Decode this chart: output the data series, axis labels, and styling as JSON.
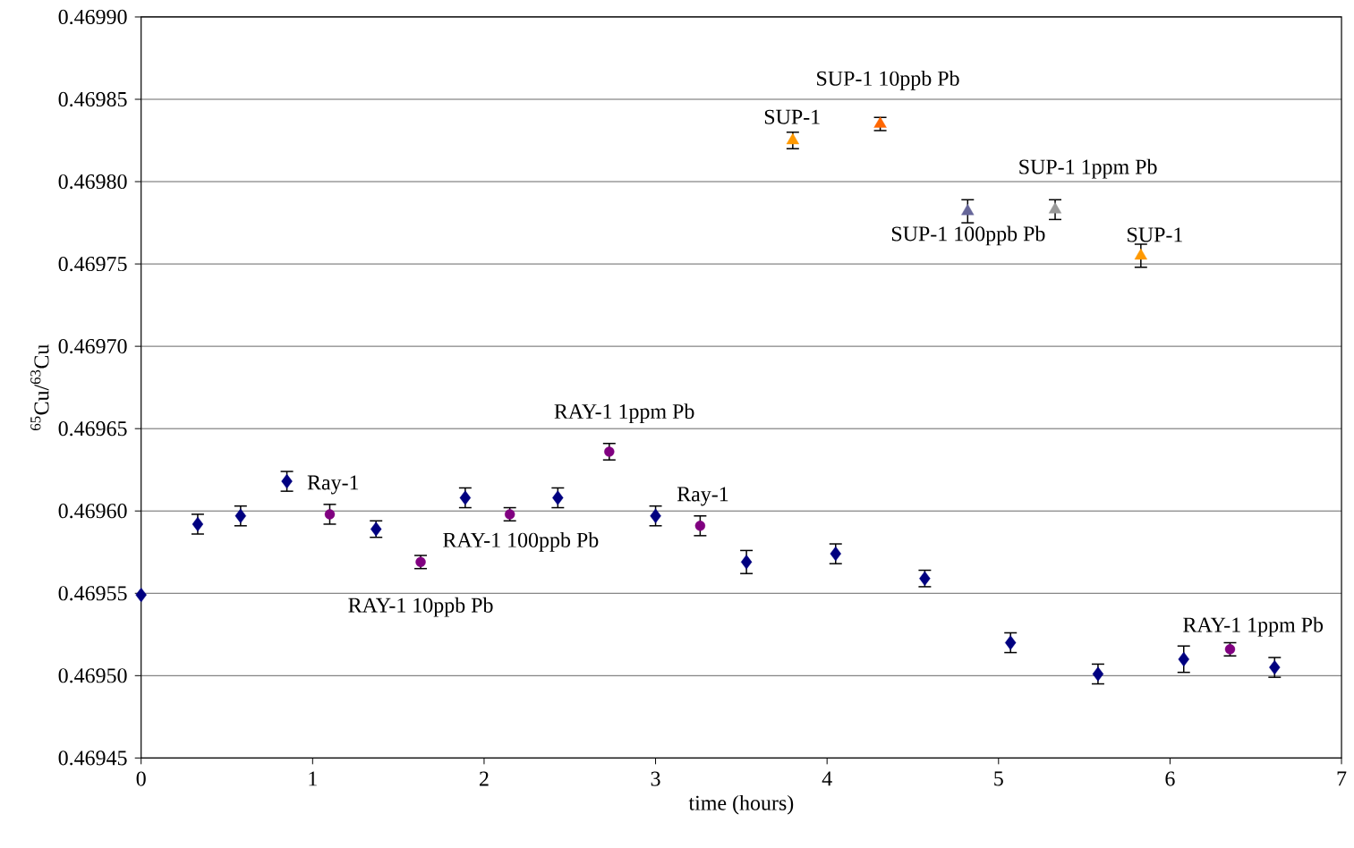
{
  "chart_data": {
    "type": "scatter",
    "xlabel": "time (hours)",
    "ylabel": "$^{65}$Cu/$^{63}$Cu",
    "xlim": [
      0,
      7
    ],
    "xticks": [
      0,
      1,
      2,
      3,
      4,
      5,
      6,
      7
    ],
    "ylim": [
      0.46945,
      0.4699
    ],
    "yticks": [
      {
        "value": 0.46945,
        "label": "0.46945"
      },
      {
        "value": 0.4695,
        "label": "0.46950"
      },
      {
        "value": 0.46955,
        "label": "0.46955"
      },
      {
        "value": 0.4696,
        "label": "0.46960"
      },
      {
        "value": 0.46965,
        "label": "0.46965"
      },
      {
        "value": 0.4697,
        "label": "0.46970"
      },
      {
        "value": 0.46975,
        "label": "0.46975"
      },
      {
        "value": 0.4698,
        "label": "0.46980"
      },
      {
        "value": 0.46985,
        "label": "0.46985"
      },
      {
        "value": 0.4699,
        "label": "0.46990"
      }
    ],
    "grid": "y",
    "series": [
      {
        "color": "#000080",
        "marker": "diamond",
        "x": [
          0,
          0.33,
          0.58,
          0.85,
          1.37,
          1.89,
          2.43,
          3.0,
          3.53,
          4.05,
          4.57,
          5.07,
          5.58,
          6.08,
          6.61
        ],
        "values": [
          0.469549,
          0.469592,
          0.469597,
          0.469618,
          0.469589,
          0.469608,
          0.469608,
          0.469597,
          0.469569,
          0.469574,
          0.469559,
          0.46952,
          0.469501,
          0.46951,
          0.469505
        ],
        "errors": [
          null,
          6e-06,
          6e-06,
          6e-06,
          5e-06,
          6e-06,
          6e-06,
          6e-06,
          7e-06,
          6e-06,
          5e-06,
          6e-06,
          6e-06,
          8e-06,
          6e-06
        ]
      },
      {
        "color": "#800080",
        "marker": "circle",
        "x": [
          1.1,
          3.26
        ],
        "values": [
          0.469598,
          0.469591
        ],
        "errors": [
          6e-06,
          6e-06
        ]
      },
      {
        "color": "#800080",
        "marker": "circle",
        "x": [
          1.63,
          2.15,
          2.73,
          6.35
        ],
        "values": [
          0.469569,
          0.469598,
          0.469636,
          0.469516
        ],
        "errors": [
          4e-06,
          4e-06,
          5e-06,
          4e-06
        ]
      },
      {
        "color": "#ff9900",
        "marker": "triangle",
        "x": [
          3.8,
          5.83
        ],
        "values": [
          0.469825,
          0.469755
        ],
        "errors": [
          5e-06,
          7e-06
        ]
      },
      {
        "color": "#ff6600",
        "marker": "triangle",
        "x": [
          4.31
        ],
        "values": [
          0.469835
        ],
        "errors": [
          4e-06
        ]
      },
      {
        "color": "#666699",
        "marker": "triangle",
        "x": [
          4.82
        ],
        "values": [
          0.469782
        ],
        "errors": [
          7e-06
        ]
      },
      {
        "color": "#999999",
        "marker": "triangle",
        "x": [
          5.33
        ],
        "values": [
          0.469783
        ],
        "errors": [
          6e-06
        ]
      }
    ],
    "annotations": [
      "SUP-1 10ppb Pb",
      "SUP-1",
      "SUP-1 1ppm Pb",
      "SUP-1 100ppb Pb",
      "SUP-1",
      "RAY-1 1ppm Pb",
      "Ray-1",
      "Ray-1",
      "RAY-1 100ppb Pb",
      "RAY-1 10ppb Pb",
      "RAY-1 1ppm Pb"
    ]
  }
}
